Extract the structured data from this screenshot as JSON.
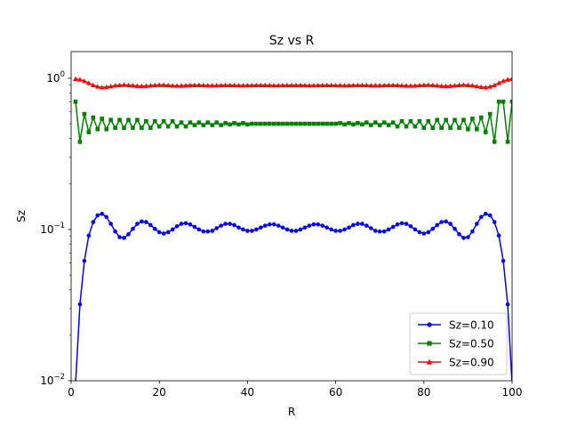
{
  "chart_data": {
    "type": "line",
    "title": "Sz vs R",
    "xlabel": "R",
    "ylabel": "Sz",
    "yscale": "log",
    "xlim": [
      0,
      100
    ],
    "ylim": [
      0.01,
      1.5
    ],
    "xticks": [
      {
        "value": 0,
        "label": "0"
      },
      {
        "value": 20,
        "label": "20"
      },
      {
        "value": 40,
        "label": "40"
      },
      {
        "value": 60,
        "label": "60"
      },
      {
        "value": 80,
        "label": "80"
      },
      {
        "value": 100,
        "label": "100"
      }
    ],
    "yticks": [
      {
        "value": 0.01,
        "base": "10",
        "exp": "−2"
      },
      {
        "value": 0.1,
        "base": "10",
        "exp": "−1"
      },
      {
        "value": 1,
        "base": "10",
        "exp": "0"
      }
    ],
    "legend_position": "lower-right",
    "series": [
      {
        "name": "Sz=0.10",
        "color": "#0000ff",
        "marker": "circle",
        "x": [
          1,
          2,
          3,
          4,
          5,
          6,
          7,
          8,
          9,
          10,
          11,
          12,
          13,
          14,
          15,
          16,
          17,
          18,
          19,
          20,
          21,
          22,
          23,
          24,
          25,
          26,
          27,
          28,
          29,
          30,
          31,
          32,
          33,
          34,
          35,
          36,
          37,
          38,
          39,
          40,
          41,
          42,
          43,
          44,
          45,
          46,
          47,
          48,
          49,
          50,
          51,
          52,
          53,
          54,
          55,
          56,
          57,
          58,
          59,
          60,
          61,
          62,
          63,
          64,
          65,
          66,
          67,
          68,
          69,
          70,
          71,
          72,
          73,
          74,
          75,
          76,
          77,
          78,
          79,
          80,
          81,
          82,
          83,
          84,
          85,
          86,
          87,
          88,
          89,
          90,
          91,
          92,
          93,
          94,
          95,
          96,
          97,
          98,
          99,
          100
        ],
        "values": [
          0.0095,
          0.032,
          0.062,
          0.091,
          0.112,
          0.124,
          0.127,
          0.121,
          0.109,
          0.097,
          0.089,
          0.088,
          0.093,
          0.101,
          0.109,
          0.113,
          0.112,
          0.107,
          0.101,
          0.096,
          0.094,
          0.096,
          0.1,
          0.105,
          0.109,
          0.11,
          0.108,
          0.104,
          0.1,
          0.097,
          0.097,
          0.098,
          0.102,
          0.106,
          0.109,
          0.109,
          0.107,
          0.103,
          0.1,
          0.098,
          0.098,
          0.1,
          0.103,
          0.106,
          0.108,
          0.108,
          0.106,
          0.103,
          0.1,
          0.098,
          0.098,
          0.1,
          0.103,
          0.106,
          0.108,
          0.108,
          0.106,
          0.103,
          0.1,
          0.098,
          0.098,
          0.1,
          0.103,
          0.107,
          0.109,
          0.109,
          0.106,
          0.102,
          0.098,
          0.097,
          0.097,
          0.1,
          0.104,
          0.108,
          0.11,
          0.109,
          0.105,
          0.1,
          0.096,
          0.094,
          0.096,
          0.101,
          0.107,
          0.112,
          0.113,
          0.109,
          0.101,
          0.093,
          0.088,
          0.089,
          0.097,
          0.109,
          0.121,
          0.127,
          0.124,
          0.112,
          0.091,
          0.062,
          0.032,
          0.0095
        ]
      },
      {
        "name": "Sz=0.50",
        "color": "#008000",
        "marker": "square",
        "x": [
          1,
          2,
          3,
          4,
          5,
          6,
          7,
          8,
          9,
          10,
          11,
          12,
          13,
          14,
          15,
          16,
          17,
          18,
          19,
          20,
          21,
          22,
          23,
          24,
          25,
          26,
          27,
          28,
          29,
          30,
          31,
          32,
          33,
          34,
          35,
          36,
          37,
          38,
          39,
          40,
          41,
          42,
          43,
          44,
          45,
          46,
          47,
          48,
          49,
          50,
          51,
          52,
          53,
          54,
          55,
          56,
          57,
          58,
          59,
          60,
          61,
          62,
          63,
          64,
          65,
          66,
          67,
          68,
          69,
          70,
          71,
          72,
          73,
          74,
          75,
          76,
          77,
          78,
          79,
          80,
          81,
          82,
          83,
          84,
          85,
          86,
          87,
          88,
          89,
          90,
          91,
          92,
          93,
          94,
          95,
          96,
          97,
          98,
          99,
          100
        ],
        "values": [
          0.7,
          0.38,
          0.58,
          0.44,
          0.55,
          0.46,
          0.54,
          0.46,
          0.53,
          0.47,
          0.53,
          0.47,
          0.53,
          0.47,
          0.53,
          0.47,
          0.52,
          0.47,
          0.52,
          0.48,
          0.52,
          0.48,
          0.52,
          0.48,
          0.51,
          0.48,
          0.51,
          0.49,
          0.51,
          0.49,
          0.51,
          0.49,
          0.51,
          0.49,
          0.505,
          0.495,
          0.505,
          0.495,
          0.505,
          0.495,
          0.5,
          0.5,
          0.5,
          0.5,
          0.5,
          0.5,
          0.5,
          0.5,
          0.5,
          0.5,
          0.5,
          0.5,
          0.5,
          0.5,
          0.5,
          0.5,
          0.5,
          0.5,
          0.5,
          0.5,
          0.505,
          0.495,
          0.505,
          0.495,
          0.505,
          0.495,
          0.51,
          0.49,
          0.51,
          0.49,
          0.51,
          0.49,
          0.51,
          0.48,
          0.52,
          0.48,
          0.52,
          0.48,
          0.52,
          0.47,
          0.52,
          0.47,
          0.53,
          0.47,
          0.53,
          0.47,
          0.53,
          0.47,
          0.53,
          0.46,
          0.54,
          0.46,
          0.55,
          0.44,
          0.58,
          0.38,
          0.7,
          0.7,
          0.38,
          0.7
        ]
      },
      {
        "name": "Sz=0.90",
        "color": "#ff0000",
        "marker": "triangle",
        "x": [
          1,
          2,
          3,
          4,
          5,
          6,
          7,
          8,
          9,
          10,
          11,
          12,
          13,
          14,
          15,
          16,
          17,
          18,
          19,
          20,
          21,
          22,
          23,
          24,
          25,
          26,
          27,
          28,
          29,
          30,
          31,
          32,
          33,
          34,
          35,
          36,
          37,
          38,
          39,
          40,
          41,
          42,
          43,
          44,
          45,
          46,
          47,
          48,
          49,
          50,
          51,
          52,
          53,
          54,
          55,
          56,
          57,
          58,
          59,
          60,
          61,
          62,
          63,
          64,
          65,
          66,
          67,
          68,
          69,
          70,
          71,
          72,
          73,
          74,
          75,
          76,
          77,
          78,
          79,
          80,
          81,
          82,
          83,
          84,
          85,
          86,
          87,
          88,
          89,
          90,
          91,
          92,
          93,
          94,
          95,
          96,
          97,
          98,
          99,
          100
        ],
        "values": [
          0.99,
          0.98,
          0.96,
          0.93,
          0.9,
          0.88,
          0.87,
          0.875,
          0.885,
          0.895,
          0.9,
          0.905,
          0.9,
          0.895,
          0.89,
          0.888,
          0.89,
          0.895,
          0.9,
          0.903,
          0.902,
          0.898,
          0.894,
          0.892,
          0.893,
          0.896,
          0.899,
          0.901,
          0.901,
          0.898,
          0.896,
          0.895,
          0.896,
          0.898,
          0.9,
          0.9,
          0.899,
          0.897,
          0.896,
          0.897,
          0.898,
          0.9,
          0.9,
          0.899,
          0.898,
          0.897,
          0.897,
          0.898,
          0.899,
          0.899,
          0.899,
          0.899,
          0.898,
          0.897,
          0.897,
          0.898,
          0.899,
          0.9,
          0.9,
          0.898,
          0.897,
          0.896,
          0.897,
          0.899,
          0.9,
          0.9,
          0.898,
          0.896,
          0.895,
          0.896,
          0.898,
          0.901,
          0.901,
          0.899,
          0.896,
          0.893,
          0.892,
          0.894,
          0.898,
          0.902,
          0.903,
          0.9,
          0.895,
          0.89,
          0.888,
          0.89,
          0.895,
          0.9,
          0.905,
          0.9,
          0.895,
          0.885,
          0.875,
          0.87,
          0.88,
          0.9,
          0.93,
          0.96,
          0.98,
          0.99
        ]
      }
    ]
  }
}
